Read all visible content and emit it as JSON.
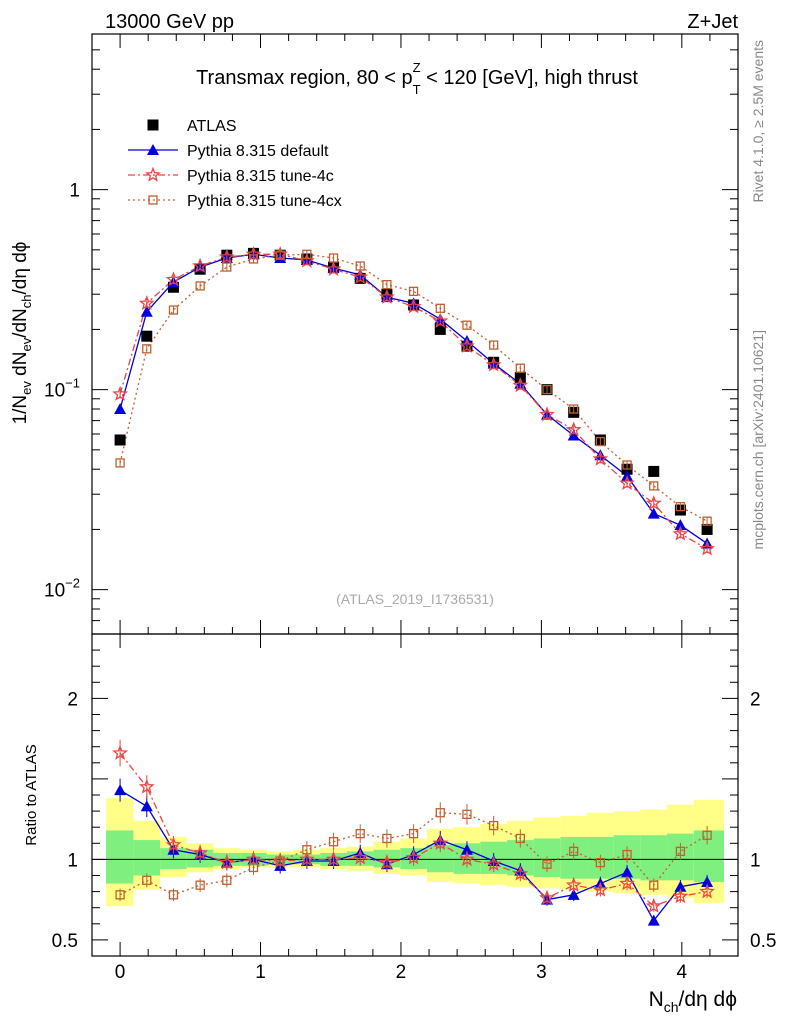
{
  "header": {
    "left": "13000 GeV pp",
    "right": "Z+Jet"
  },
  "side_labels": {
    "rivet": "Rivet 4.1.0, ≥ 2.5M events",
    "mcplots": "mcplots.cern.ch [arXiv:2401.10621]"
  },
  "colors": {
    "atlas": "#000000",
    "default": "#0000dd",
    "tune4c": "#ee4444",
    "tune4cx": "#c06030",
    "band_green": "#7ff07f",
    "band_yellow": "#ffff88"
  },
  "chart_data": {
    "type": "scatter",
    "title": "Transmax region, 80 < p_T^Z < 120 [GeV], high thrust",
    "title_parts": {
      "prefix": "Transmax region, 80 < p",
      "sub": "T",
      "sup": "Z",
      "suffix": " < 120 [GeV], high thrust"
    },
    "xlabel": "N_ch/dη dϕ",
    "xlabel_parts": {
      "n": "N",
      "sub": "ch",
      "rest": "/dη dϕ"
    },
    "ylabel": "1/N_ev dN_ev/dN_ch/dη dϕ",
    "ylabel_parts": [
      {
        "t": "1/N",
        "s": "n"
      },
      {
        "t": "ev",
        "s": "sub"
      },
      {
        "t": " dN",
        "s": "n"
      },
      {
        "t": "ev",
        "s": "sub"
      },
      {
        "t": "/dN",
        "s": "n"
      },
      {
        "t": "ch",
        "s": "sub"
      },
      {
        "t": "/dη dϕ",
        "s": "n"
      }
    ],
    "ratio_ylabel": "Ratio to ATLAS",
    "watermark": "(ATLAS_2019_I1736531)",
    "xlim": [
      -0.2,
      4.4
    ],
    "ylim_main": [
      0.006,
      6
    ],
    "ylim_ratio": [
      0.4,
      2.4
    ],
    "yscale": "log",
    "x_ticks": [
      "0",
      "1",
      "2",
      "3",
      "4"
    ],
    "y_ticks_main": [
      {
        "base": "10",
        "exp": "−2"
      },
      {
        "base": "10",
        "exp": "−1"
      },
      {
        "base": "1",
        "exp": ""
      }
    ],
    "y_ticks_ratio": [
      "0.5",
      "1",
      "2"
    ],
    "legend_position": "top-left",
    "x": [
      0.0,
      0.19,
      0.38,
      0.57,
      0.76,
      0.95,
      1.14,
      1.33,
      1.52,
      1.71,
      1.9,
      2.09,
      2.28,
      2.47,
      2.66,
      2.85,
      3.04,
      3.23,
      3.42,
      3.61,
      3.8,
      3.99,
      4.18
    ],
    "series": [
      {
        "name": "ATLAS",
        "marker": "square",
        "values": [
          0.056,
          0.185,
          0.325,
          0.4,
          0.47,
          0.48,
          0.47,
          0.45,
          0.41,
          0.36,
          0.3,
          0.265,
          0.2,
          0.165,
          0.137,
          0.115,
          0.1,
          0.077,
          0.056,
          0.04,
          0.039,
          0.025,
          0.02
        ]
      },
      {
        "name": "Pythia 8.315 default",
        "marker": "triangle",
        "values": [
          0.08,
          0.245,
          0.345,
          0.41,
          0.455,
          0.475,
          0.455,
          0.445,
          0.405,
          0.375,
          0.29,
          0.27,
          0.225,
          0.175,
          0.135,
          0.107,
          0.075,
          0.059,
          0.047,
          0.037,
          0.024,
          0.021,
          0.017
        ],
        "ratio": [
          1.43,
          1.33,
          1.06,
          1.03,
          0.98,
          1.0,
          0.96,
          0.99,
          0.99,
          1.04,
          0.97,
          1.03,
          1.12,
          1.06,
          0.99,
          0.93,
          0.75,
          0.78,
          0.85,
          0.92,
          0.62,
          0.83,
          0.86
        ]
      },
      {
        "name": "Pythia 8.315 tune-4c",
        "marker": "star",
        "values": [
          0.095,
          0.27,
          0.355,
          0.415,
          0.46,
          0.475,
          0.475,
          0.44,
          0.4,
          0.365,
          0.29,
          0.26,
          0.22,
          0.165,
          0.133,
          0.105,
          0.075,
          0.063,
          0.045,
          0.034,
          0.027,
          0.019,
          0.016
        ],
        "ratio": [
          1.66,
          1.45,
          1.09,
          1.04,
          0.98,
          1.0,
          0.99,
          1.0,
          1.0,
          1.01,
          0.98,
          1.01,
          1.1,
          1.0,
          0.97,
          0.91,
          0.76,
          0.84,
          0.81,
          0.85,
          0.71,
          0.77,
          0.8
        ]
      },
      {
        "name": "Pythia 8.315 tune-4cx",
        "marker": "open-square",
        "values": [
          0.043,
          0.16,
          0.25,
          0.33,
          0.41,
          0.45,
          0.47,
          0.475,
          0.455,
          0.415,
          0.335,
          0.31,
          0.255,
          0.21,
          0.167,
          0.128,
          0.1,
          0.08,
          0.055,
          0.042,
          0.033,
          0.026,
          0.022
        ],
        "ratio": [
          0.78,
          0.87,
          0.78,
          0.84,
          0.87,
          0.95,
          0.99,
          1.06,
          1.11,
          1.16,
          1.13,
          1.16,
          1.29,
          1.28,
          1.21,
          1.13,
          0.97,
          1.05,
          0.98,
          1.03,
          0.84,
          1.05,
          1.15
        ]
      }
    ],
    "error_bands": {
      "x_edges": [
        -0.1,
        0.095,
        0.285,
        0.475,
        0.665,
        0.855,
        1.045,
        1.235,
        1.425,
        1.615,
        1.805,
        1.995,
        2.185,
        2.375,
        2.565,
        2.755,
        2.945,
        3.135,
        3.325,
        3.515,
        3.705,
        3.895,
        4.085,
        4.3
      ],
      "green": [
        [
          0.85,
          1.18
        ],
        [
          0.9,
          1.12
        ],
        [
          0.94,
          1.07
        ],
        [
          0.95,
          1.06
        ],
        [
          0.96,
          1.04
        ],
        [
          0.96,
          1.04
        ],
        [
          0.97,
          1.03
        ],
        [
          0.97,
          1.03
        ],
        [
          0.96,
          1.04
        ],
        [
          0.96,
          1.05
        ],
        [
          0.95,
          1.06
        ],
        [
          0.94,
          1.07
        ],
        [
          0.92,
          1.09
        ],
        [
          0.91,
          1.1
        ],
        [
          0.91,
          1.11
        ],
        [
          0.9,
          1.12
        ],
        [
          0.89,
          1.13
        ],
        [
          0.88,
          1.14
        ],
        [
          0.88,
          1.14
        ],
        [
          0.88,
          1.15
        ],
        [
          0.87,
          1.15
        ],
        [
          0.87,
          1.16
        ],
        [
          0.86,
          1.18
        ]
      ],
      "yellow": [
        [
          0.71,
          1.38
        ],
        [
          0.81,
          1.24
        ],
        [
          0.89,
          1.14
        ],
        [
          0.92,
          1.1
        ],
        [
          0.94,
          1.07
        ],
        [
          0.95,
          1.06
        ],
        [
          0.95,
          1.05
        ],
        [
          0.95,
          1.06
        ],
        [
          0.94,
          1.07
        ],
        [
          0.93,
          1.08
        ],
        [
          0.91,
          1.11
        ],
        [
          0.9,
          1.13
        ],
        [
          0.86,
          1.19
        ],
        [
          0.85,
          1.2
        ],
        [
          0.84,
          1.22
        ],
        [
          0.83,
          1.24
        ],
        [
          0.82,
          1.26
        ],
        [
          0.81,
          1.27
        ],
        [
          0.8,
          1.29
        ],
        [
          0.79,
          1.3
        ],
        [
          0.78,
          1.31
        ],
        [
          0.76,
          1.34
        ],
        [
          0.73,
          1.37
        ]
      ]
    }
  }
}
